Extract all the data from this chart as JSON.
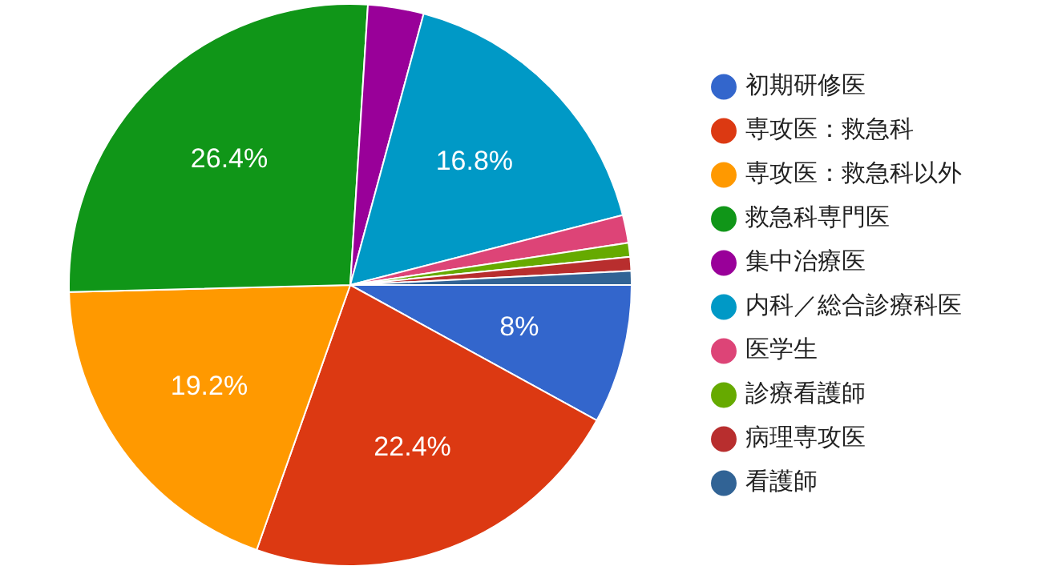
{
  "chart_data": {
    "type": "pie",
    "categories": [
      "初期研修医",
      "専攻医：救急科",
      "専攻医：救急科以外",
      "救急科専門医",
      "集中治療医",
      "内科／総合診療科医",
      "医学生",
      "診療看護師",
      "病理専攻医",
      "看護師"
    ],
    "values": [
      8,
      22.4,
      19.2,
      26.4,
      3.2,
      16.8,
      1.6,
      0.8,
      0.8,
      0.8
    ],
    "colors": [
      "#3366cc",
      "#dc3912",
      "#ff9900",
      "#109618",
      "#990099",
      "#0099c6",
      "#dd4477",
      "#66aa00",
      "#b82e2e",
      "#316395"
    ],
    "value_labels": [
      "8%",
      "22.4%",
      "19.2%",
      "26.4%",
      null,
      "16.8%",
      null,
      null,
      null,
      null
    ],
    "legend": "right",
    "marker": "circle"
  }
}
